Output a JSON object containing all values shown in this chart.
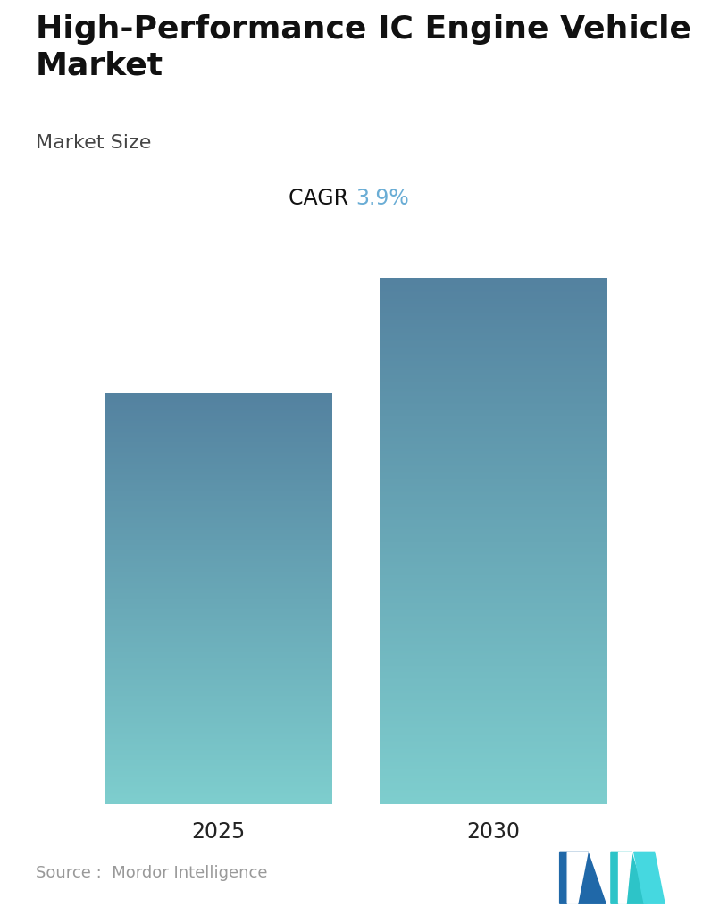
{
  "title": "High-Performance IC Engine Vehicle\nMarket",
  "subtitle": "Market Size",
  "cagr_label": "CAGR ",
  "cagr_value": "3.9%",
  "cagr_color": "#6aadd5",
  "categories": [
    "2025",
    "2030"
  ],
  "values": [
    0.78,
    1.0
  ],
  "bar_color_top": "#5482a0",
  "bar_color_bottom": "#7ecece",
  "background_color": "#ffffff",
  "source_text": "Source :  Mordor Intelligence",
  "title_fontsize": 26,
  "subtitle_fontsize": 16,
  "cagr_fontsize": 17,
  "tick_fontsize": 17,
  "source_fontsize": 13,
  "bar_positions": [
    0.27,
    0.73
  ],
  "bar_width": 0.38
}
